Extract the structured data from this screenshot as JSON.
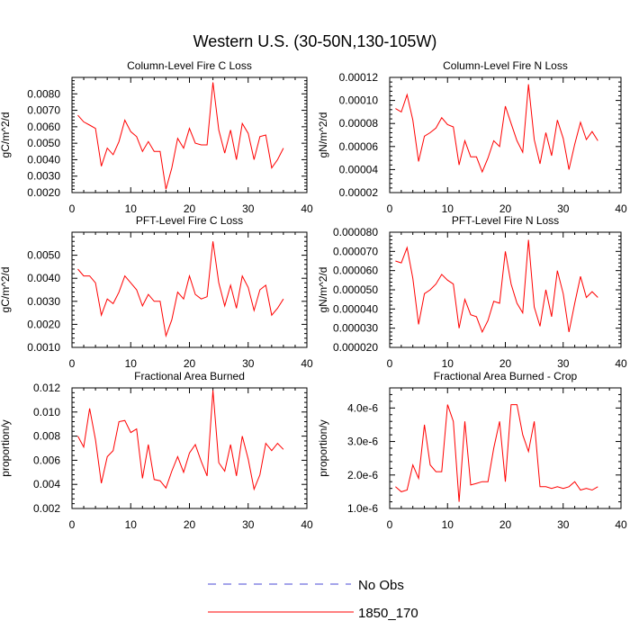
{
  "figure_title": "Western U.S. (30-50N,130-105W)",
  "colors": {
    "series": "#ff0000",
    "obs": "#4a4ad6",
    "axis": "#000000"
  },
  "legend": {
    "obs_label": "No Obs",
    "model_label": "1850_170"
  },
  "chart_data": [
    {
      "type": "line",
      "title": "Column-Level Fire C Loss",
      "ylabel": "gC/m^2/d",
      "xlim": [
        0,
        40
      ],
      "xticks": [
        "0",
        "10",
        "20",
        "30",
        "40"
      ],
      "ylim": [
        0.002,
        0.009
      ],
      "yticks": [
        "0.0020",
        "0.0030",
        "0.0040",
        "0.0050",
        "0.0060",
        "0.0070",
        "0.0080"
      ],
      "ytick_values": [
        0.002,
        0.003,
        0.004,
        0.005,
        0.006,
        0.007,
        0.008
      ],
      "x": [
        1,
        2,
        3,
        4,
        5,
        6,
        7,
        8,
        9,
        10,
        11,
        12,
        13,
        14,
        15,
        16,
        17,
        18,
        19,
        20,
        21,
        22,
        23,
        24,
        25,
        26,
        27,
        28,
        29,
        30,
        31,
        32,
        33,
        34,
        35,
        36
      ],
      "series": [
        {
          "name": "1850_170",
          "values": [
            0.0067,
            0.0063,
            0.0061,
            0.0059,
            0.0036,
            0.0047,
            0.0043,
            0.0051,
            0.0064,
            0.0057,
            0.0054,
            0.0045,
            0.0051,
            0.0045,
            0.0045,
            0.0022,
            0.0035,
            0.0053,
            0.0047,
            0.0059,
            0.005,
            0.0049,
            0.0049,
            0.0087,
            0.0058,
            0.0044,
            0.0058,
            0.004,
            0.0062,
            0.0056,
            0.004,
            0.0054,
            0.0055,
            0.0035,
            0.004,
            0.0047
          ]
        }
      ]
    },
    {
      "type": "line",
      "title": "Column-Level Fire N Loss",
      "ylabel": "gN/m^2/d",
      "xlim": [
        0,
        40
      ],
      "xticks": [
        "0",
        "10",
        "20",
        "30",
        "40"
      ],
      "ylim": [
        2e-05,
        0.00012
      ],
      "yticks": [
        "0.00002",
        "0.00004",
        "0.00006",
        "0.00008",
        "0.00010",
        "0.00012"
      ],
      "ytick_values": [
        2e-05,
        4e-05,
        6e-05,
        8e-05,
        0.0001,
        0.00012
      ],
      "x": [
        1,
        2,
        3,
        4,
        5,
        6,
        7,
        8,
        9,
        10,
        11,
        12,
        13,
        14,
        15,
        16,
        17,
        18,
        19,
        20,
        21,
        22,
        23,
        24,
        25,
        26,
        27,
        28,
        29,
        30,
        31,
        32,
        33,
        34,
        35,
        36
      ],
      "series": [
        {
          "name": "1850_170",
          "values": [
            9.3e-05,
            9e-05,
            0.000105,
            8.3e-05,
            4.7e-05,
            6.9e-05,
            7.2e-05,
            7.6e-05,
            8.5e-05,
            7.9e-05,
            7.7e-05,
            4.4e-05,
            6.5e-05,
            5.1e-05,
            5.1e-05,
            3.8e-05,
            5e-05,
            6.5e-05,
            6e-05,
            9.5e-05,
            8e-05,
            6.5e-05,
            5.5e-05,
            0.000114,
            6.6e-05,
            4.5e-05,
            7.2e-05,
            5.2e-05,
            8.3e-05,
            6.7e-05,
            4e-05,
            6.2e-05,
            8.1e-05,
            6.6e-05,
            7.3e-05,
            6.5e-05
          ]
        }
      ]
    },
    {
      "type": "line",
      "title": "PFT-Level Fire C Loss",
      "ylabel": "gC/m^2/d",
      "xlim": [
        0,
        40
      ],
      "xticks": [
        "0",
        "10",
        "20",
        "30",
        "40"
      ],
      "ylim": [
        0.001,
        0.006
      ],
      "yticks": [
        "0.0010",
        "0.0020",
        "0.0030",
        "0.0040",
        "0.0050"
      ],
      "ytick_values": [
        0.001,
        0.002,
        0.003,
        0.004,
        0.005
      ],
      "x": [
        1,
        2,
        3,
        4,
        5,
        6,
        7,
        8,
        9,
        10,
        11,
        12,
        13,
        14,
        15,
        16,
        17,
        18,
        19,
        20,
        21,
        22,
        23,
        24,
        25,
        26,
        27,
        28,
        29,
        30,
        31,
        32,
        33,
        34,
        35,
        36
      ],
      "series": [
        {
          "name": "1850_170",
          "values": [
            0.0044,
            0.0041,
            0.0041,
            0.0038,
            0.0024,
            0.0031,
            0.0029,
            0.0034,
            0.0041,
            0.0038,
            0.0035,
            0.0028,
            0.0033,
            0.003,
            0.003,
            0.0015,
            0.0022,
            0.0034,
            0.0031,
            0.0041,
            0.0033,
            0.0031,
            0.0032,
            0.0056,
            0.0038,
            0.0028,
            0.0037,
            0.0027,
            0.0041,
            0.0036,
            0.0026,
            0.0035,
            0.0037,
            0.0024,
            0.0027,
            0.0031
          ]
        }
      ]
    },
    {
      "type": "line",
      "title": "PFT-Level Fire N Loss",
      "ylabel": "gN/m^2/d",
      "xlim": [
        0,
        40
      ],
      "xticks": [
        "0",
        "10",
        "20",
        "30",
        "40"
      ],
      "ylim": [
        2e-05,
        8e-05
      ],
      "yticks": [
        "0.000020",
        "0.000030",
        "0.000040",
        "0.000050",
        "0.000060",
        "0.000070",
        "0.000080"
      ],
      "ytick_values": [
        2e-05,
        3e-05,
        4e-05,
        5e-05,
        6e-05,
        7e-05,
        8e-05
      ],
      "x": [
        1,
        2,
        3,
        4,
        5,
        6,
        7,
        8,
        9,
        10,
        11,
        12,
        13,
        14,
        15,
        16,
        17,
        18,
        19,
        20,
        21,
        22,
        23,
        24,
        25,
        26,
        27,
        28,
        29,
        30,
        31,
        32,
        33,
        34,
        35,
        36
      ],
      "series": [
        {
          "name": "1850_170",
          "values": [
            6.5e-05,
            6.4e-05,
            7.2e-05,
            5.6e-05,
            3.2e-05,
            4.8e-05,
            5e-05,
            5.3e-05,
            5.8e-05,
            5.5e-05,
            5.3e-05,
            3e-05,
            4.5e-05,
            3.7e-05,
            3.6e-05,
            2.8e-05,
            3.4e-05,
            4.4e-05,
            4.3e-05,
            7e-05,
            5.3e-05,
            4.3e-05,
            3.8e-05,
            7.6e-05,
            4.1e-05,
            3.1e-05,
            5e-05,
            3.6e-05,
            6e-05,
            4.8e-05,
            2.8e-05,
            4.3e-05,
            5.7e-05,
            4.6e-05,
            4.9e-05,
            4.6e-05
          ]
        }
      ]
    },
    {
      "type": "line",
      "title": "Fractional Area Burned",
      "ylabel": "proportion/y",
      "xlim": [
        0,
        40
      ],
      "xticks": [
        "0",
        "10",
        "20",
        "30",
        "40"
      ],
      "ylim": [
        0.002,
        0.012
      ],
      "yticks": [
        "0.002",
        "0.004",
        "0.006",
        "0.008",
        "0.010",
        "0.012"
      ],
      "ytick_values": [
        0.002,
        0.004,
        0.006,
        0.008,
        0.01,
        0.012
      ],
      "x": [
        1,
        2,
        3,
        4,
        5,
        6,
        7,
        8,
        9,
        10,
        11,
        12,
        13,
        14,
        15,
        16,
        17,
        18,
        19,
        20,
        21,
        22,
        23,
        24,
        25,
        26,
        27,
        28,
        29,
        30,
        31,
        32,
        33,
        34,
        35,
        36
      ],
      "series": [
        {
          "name": "1850_170",
          "values": [
            0.008,
            0.0071,
            0.0103,
            0.0077,
            0.0041,
            0.0063,
            0.0068,
            0.0092,
            0.0093,
            0.0083,
            0.0086,
            0.0045,
            0.0073,
            0.0044,
            0.0043,
            0.0037,
            0.0051,
            0.0063,
            0.005,
            0.0066,
            0.0073,
            0.0059,
            0.0047,
            0.0118,
            0.0058,
            0.0051,
            0.0073,
            0.0047,
            0.008,
            0.0061,
            0.0036,
            0.0048,
            0.0074,
            0.0068,
            0.0074,
            0.0069
          ]
        }
      ]
    },
    {
      "type": "line",
      "title": "Fractional Area Burned - Crop",
      "ylabel": "proportion/y",
      "xlim": [
        0,
        40
      ],
      "xticks": [
        "0",
        "10",
        "20",
        "30",
        "40"
      ],
      "ylim": [
        1e-06,
        4.6e-06
      ],
      "yticks": [
        "1.0e-6",
        "2.0e-6",
        "3.0e-6",
        "4.0e-6"
      ],
      "ytick_values": [
        1e-06,
        2e-06,
        3e-06,
        4e-06
      ],
      "x": [
        1,
        2,
        3,
        4,
        5,
        6,
        7,
        8,
        9,
        10,
        11,
        12,
        13,
        14,
        15,
        16,
        17,
        18,
        19,
        20,
        21,
        22,
        23,
        24,
        25,
        26,
        27,
        28,
        29,
        30,
        31,
        32,
        33,
        34,
        35,
        36
      ],
      "series": [
        {
          "name": "1850_170",
          "values": [
            1.65e-06,
            1.5e-06,
            1.55e-06,
            2.3e-06,
            1.9e-06,
            3.5e-06,
            2.3e-06,
            2.1e-06,
            2.1e-06,
            4.1e-06,
            3.6e-06,
            1.2e-06,
            3.6e-06,
            1.7e-06,
            1.75e-06,
            1.8e-06,
            1.8e-06,
            2.8e-06,
            3.6e-06,
            1.8e-06,
            4.1e-06,
            4.1e-06,
            3.2e-06,
            2.7e-06,
            3.6e-06,
            1.65e-06,
            1.65e-06,
            1.6e-06,
            1.65e-06,
            1.6e-06,
            1.65e-06,
            1.8e-06,
            1.55e-06,
            1.6e-06,
            1.55e-06,
            1.65e-06
          ]
        }
      ]
    }
  ]
}
